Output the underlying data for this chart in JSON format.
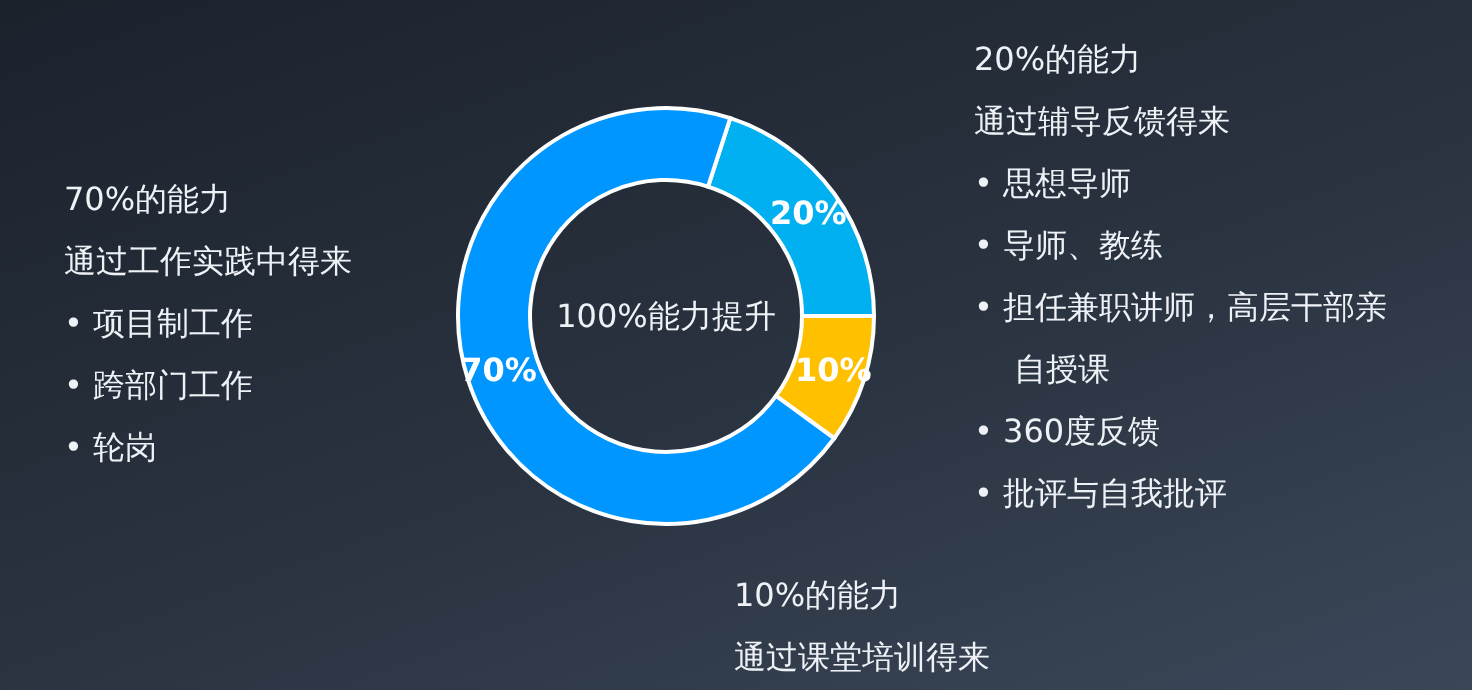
{
  "chart_data": {
    "type": "donut",
    "categories": [
      null,
      null,
      null
    ],
    "values": [
      20,
      10,
      70
    ],
    "colors": [
      "#00b0f0",
      "#ffc000",
      "#0096ff"
    ],
    "value_labels": [
      "20%",
      "10%",
      "70%"
    ],
    "title": "100%能力提升",
    "annotations": [
      "70%的能力",
      "通过工作实践中得来",
      "• 项目制工作",
      "• 跨部门工作",
      "• 轮岗",
      "20%的能力",
      "通过辅导反馈得来",
      "• 思想导师",
      "• 导师、教练",
      "• 担任兼职讲师，高层干部亲自授课",
      "• 360度反馈",
      "• 批评与自我批评",
      "10%的能力",
      "通过课堂培训得来"
    ]
  }
}
